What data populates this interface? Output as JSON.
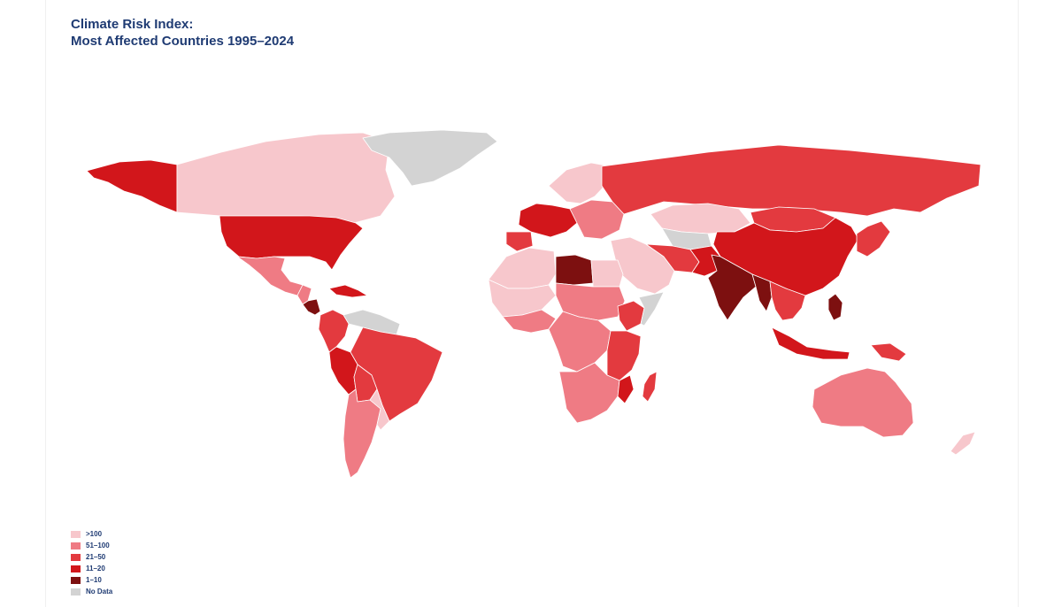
{
  "title": {
    "line1": "Climate Risk Index:",
    "line2": "Most Affected Countries 1995–2024"
  },
  "colors": {
    "gt100": "#f7c7cc",
    "r51_100": "#ef7b84",
    "r21_50": "#e33a3f",
    "r11_20": "#d2161b",
    "r1_10": "#7d1010",
    "nodata": "#d3d3d3"
  },
  "legend": [
    {
      "label": ">100",
      "color": "#f7c7cc"
    },
    {
      "label": "51–100",
      "color": "#ef7b84"
    },
    {
      "label": "21–50",
      "color": "#e33a3f"
    },
    {
      "label": "11–20",
      "color": "#d2161b"
    },
    {
      "label": "1–10",
      "color": "#7d1010"
    },
    {
      "label": "No Data",
      "color": "#d3d3d3"
    }
  ],
  "regions": [
    {
      "name": "alaska",
      "bin": "r11_20"
    },
    {
      "name": "canada",
      "bin": "gt100"
    },
    {
      "name": "greenland",
      "bin": "nodata"
    },
    {
      "name": "usa",
      "bin": "r11_20"
    },
    {
      "name": "mexico",
      "bin": "r51_100"
    },
    {
      "name": "central-america",
      "bin": "r51_100"
    },
    {
      "name": "honduras-nicaragua",
      "bin": "r1_10"
    },
    {
      "name": "caribbean",
      "bin": "r11_20"
    },
    {
      "name": "venezuela-guianas",
      "bin": "nodata"
    },
    {
      "name": "colombia",
      "bin": "r21_50"
    },
    {
      "name": "brazil",
      "bin": "r21_50"
    },
    {
      "name": "peru",
      "bin": "r11_20"
    },
    {
      "name": "bolivia",
      "bin": "r21_50"
    },
    {
      "name": "argentina-chile",
      "bin": "r51_100"
    },
    {
      "name": "uruguay-paraguay",
      "bin": "gt100"
    },
    {
      "name": "scandinavia",
      "bin": "gt100"
    },
    {
      "name": "western-europe",
      "bin": "r11_20"
    },
    {
      "name": "iberia",
      "bin": "r21_50"
    },
    {
      "name": "eastern-europe",
      "bin": "r51_100"
    },
    {
      "name": "russia",
      "bin": "r21_50"
    },
    {
      "name": "kazakhstan",
      "bin": "gt100"
    },
    {
      "name": "central-asia",
      "bin": "nodata"
    },
    {
      "name": "mongolia",
      "bin": "r21_50"
    },
    {
      "name": "china",
      "bin": "r11_20"
    },
    {
      "name": "japan-korea",
      "bin": "r21_50"
    },
    {
      "name": "middle-east",
      "bin": "gt100"
    },
    {
      "name": "iran-afghanistan",
      "bin": "r21_50"
    },
    {
      "name": "pakistan",
      "bin": "r11_20"
    },
    {
      "name": "india",
      "bin": "r1_10"
    },
    {
      "name": "myanmar",
      "bin": "r1_10"
    },
    {
      "name": "southeast-asia",
      "bin": "r21_50"
    },
    {
      "name": "philippines",
      "bin": "r1_10"
    },
    {
      "name": "indonesia",
      "bin": "r11_20"
    },
    {
      "name": "papua",
      "bin": "r21_50"
    },
    {
      "name": "north-africa",
      "bin": "gt100"
    },
    {
      "name": "libya",
      "bin": "r1_10"
    },
    {
      "name": "egypt",
      "bin": "gt100"
    },
    {
      "name": "sahel-west",
      "bin": "gt100"
    },
    {
      "name": "west-africa",
      "bin": "r51_100"
    },
    {
      "name": "sudan-chad",
      "bin": "r51_100"
    },
    {
      "name": "horn-of-africa",
      "bin": "r21_50"
    },
    {
      "name": "somalia",
      "bin": "nodata"
    },
    {
      "name": "central-africa",
      "bin": "r51_100"
    },
    {
      "name": "east-africa",
      "bin": "r21_50"
    },
    {
      "name": "southern-africa",
      "bin": "r51_100"
    },
    {
      "name": "mozambique",
      "bin": "r11_20"
    },
    {
      "name": "madagascar",
      "bin": "r21_50"
    },
    {
      "name": "australia",
      "bin": "r51_100"
    },
    {
      "name": "new-zealand",
      "bin": "gt100"
    }
  ]
}
